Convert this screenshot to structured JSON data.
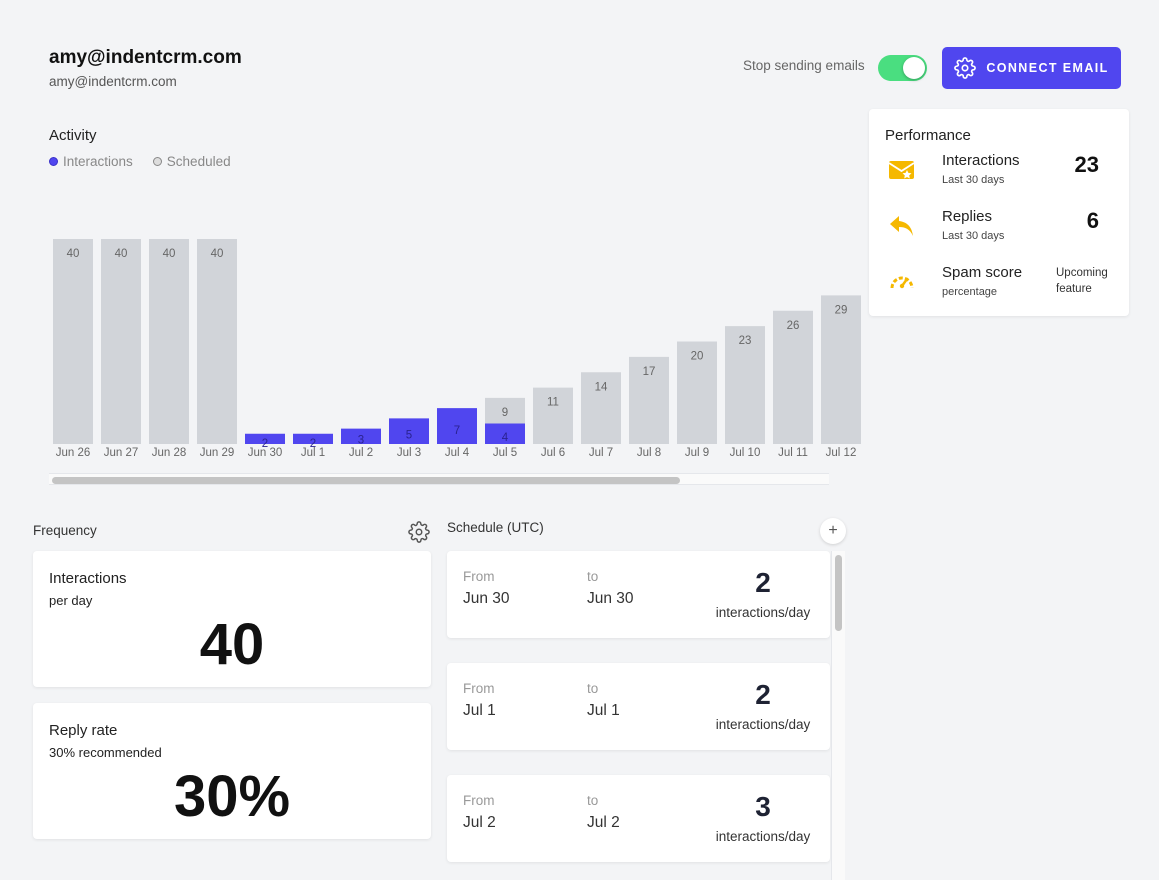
{
  "account": {
    "name": "amy@indentcrm.com",
    "email": "amy@indentcrm.com"
  },
  "header": {
    "stop_sending_label": "Stop sending emails",
    "stop_sending_enabled": true,
    "connect_button": "CONNECT EMAIL"
  },
  "activity": {
    "title": "Activity",
    "legend": {
      "interactions": "Interactions",
      "scheduled": "Scheduled"
    }
  },
  "chart_data": {
    "type": "bar",
    "categories": [
      "Jun 26",
      "Jun 27",
      "Jun 28",
      "Jun 29",
      "Jun 30",
      "Jul 1",
      "Jul 2",
      "Jul 3",
      "Jul 4",
      "Jul 5",
      "Jul 6",
      "Jul 7",
      "Jul 8",
      "Jul 9",
      "Jul 10",
      "Jul 11",
      "Jul 12"
    ],
    "series": [
      {
        "name": "Interactions",
        "values": [
          0,
          0,
          0,
          0,
          2,
          2,
          3,
          5,
          7,
          4,
          0,
          0,
          0,
          0,
          0,
          0,
          0
        ],
        "color": "#5046ef"
      },
      {
        "name": "Scheduled",
        "values": [
          40,
          40,
          40,
          40,
          0,
          0,
          0,
          0,
          0,
          9,
          11,
          14,
          17,
          20,
          23,
          26,
          29
        ],
        "color": "#d1d4d9"
      }
    ],
    "ylim": [
      0,
      40
    ],
    "xlabel": "",
    "ylabel": "",
    "grid": false,
    "legend_position": "top-left"
  },
  "performance": {
    "title": "Performance",
    "rows": [
      {
        "label": "Interactions",
        "sub": "Last 30 days",
        "value": "23",
        "icon": "envelope-star-icon"
      },
      {
        "label": "Replies",
        "sub": "Last 30 days",
        "value": "6",
        "icon": "reply-icon"
      },
      {
        "label": "Spam score",
        "sub": "percentage",
        "note": "Upcoming feature",
        "icon": "speedometer-icon"
      }
    ],
    "icon_color": "#f5b800"
  },
  "frequency": {
    "title": "Frequency",
    "interactions": {
      "label": "Interactions",
      "sub": "per day",
      "value": "40"
    },
    "reply_rate": {
      "label": "Reply rate",
      "sub": "30% recommended",
      "value": "30%"
    }
  },
  "schedule": {
    "title": "Schedule (UTC)",
    "from_label": "From",
    "to_label": "to",
    "unit": "interactions/day",
    "items": [
      {
        "from": "Jun 30",
        "to": "Jun 30",
        "count": "2"
      },
      {
        "from": "Jul 1",
        "to": "Jul 1",
        "count": "2"
      },
      {
        "from": "Jul 2",
        "to": "Jul 2",
        "count": "3"
      }
    ]
  }
}
